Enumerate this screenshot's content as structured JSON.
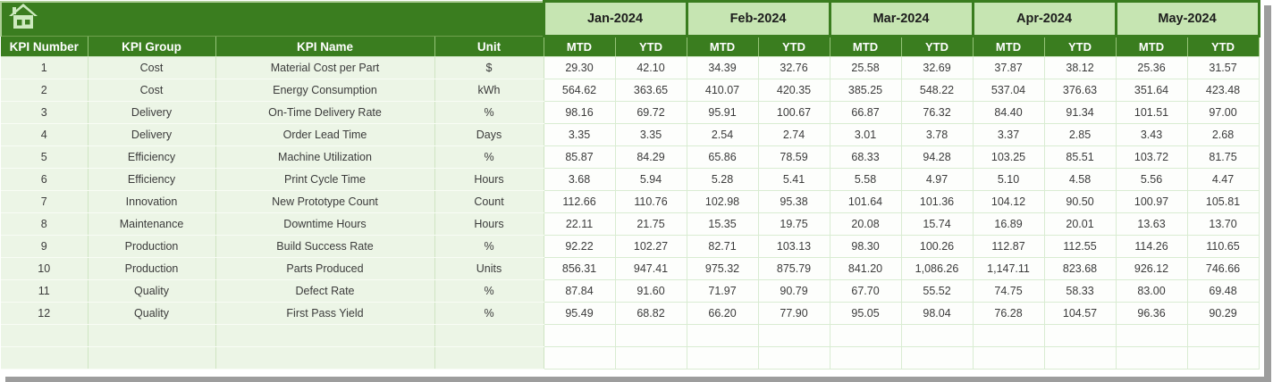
{
  "toolbar": {
    "home_icon": "home"
  },
  "table": {
    "corner_headers": [
      "KPI Number",
      "KPI Group",
      "KPI Name",
      "Unit"
    ],
    "months": [
      "Jan-2024",
      "Feb-2024",
      "Mar-2024",
      "Apr-2024",
      "May-2024"
    ],
    "period_headers": [
      "MTD",
      "YTD"
    ],
    "rows": [
      {
        "number": "1",
        "group": "Cost",
        "name": "Material Cost per Part",
        "unit": "$",
        "values": [
          "29.30",
          "42.10",
          "34.39",
          "32.76",
          "25.58",
          "32.69",
          "37.87",
          "38.12",
          "25.36",
          "31.57"
        ]
      },
      {
        "number": "2",
        "group": "Cost",
        "name": "Energy Consumption",
        "unit": "kWh",
        "values": [
          "564.62",
          "363.65",
          "410.07",
          "420.35",
          "385.25",
          "548.22",
          "537.04",
          "376.63",
          "351.64",
          "423.48"
        ]
      },
      {
        "number": "3",
        "group": "Delivery",
        "name": "On-Time Delivery Rate",
        "unit": "%",
        "values": [
          "98.16",
          "69.72",
          "95.91",
          "100.67",
          "66.87",
          "76.32",
          "84.40",
          "91.34",
          "101.51",
          "97.00"
        ]
      },
      {
        "number": "4",
        "group": "Delivery",
        "name": "Order Lead Time",
        "unit": "Days",
        "values": [
          "3.35",
          "3.35",
          "2.54",
          "2.74",
          "3.01",
          "3.78",
          "3.37",
          "2.85",
          "3.43",
          "2.68"
        ]
      },
      {
        "number": "5",
        "group": "Efficiency",
        "name": "Machine Utilization",
        "unit": "%",
        "values": [
          "85.87",
          "84.29",
          "65.86",
          "78.59",
          "68.33",
          "94.28",
          "103.25",
          "85.51",
          "103.72",
          "81.75"
        ]
      },
      {
        "number": "6",
        "group": "Efficiency",
        "name": "Print Cycle Time",
        "unit": "Hours",
        "values": [
          "3.68",
          "5.94",
          "5.28",
          "5.41",
          "5.58",
          "4.97",
          "5.10",
          "4.58",
          "5.56",
          "4.47"
        ]
      },
      {
        "number": "7",
        "group": "Innovation",
        "name": "New Prototype Count",
        "unit": "Count",
        "values": [
          "112.66",
          "110.76",
          "102.98",
          "95.38",
          "101.64",
          "101.36",
          "104.12",
          "90.50",
          "100.97",
          "105.81"
        ]
      },
      {
        "number": "8",
        "group": "Maintenance",
        "name": "Downtime Hours",
        "unit": "Hours",
        "values": [
          "22.11",
          "21.75",
          "15.35",
          "19.75",
          "20.08",
          "15.74",
          "16.89",
          "20.01",
          "13.63",
          "13.70"
        ]
      },
      {
        "number": "9",
        "group": "Production",
        "name": "Build Success Rate",
        "unit": "%",
        "values": [
          "92.22",
          "102.27",
          "82.71",
          "103.13",
          "98.30",
          "100.26",
          "112.87",
          "112.55",
          "114.26",
          "110.65"
        ]
      },
      {
        "number": "10",
        "group": "Production",
        "name": "Parts Produced",
        "unit": "Units",
        "values": [
          "856.31",
          "947.41",
          "975.32",
          "875.79",
          "841.20",
          "1,086.26",
          "1,147.11",
          "823.68",
          "926.12",
          "746.66"
        ]
      },
      {
        "number": "11",
        "group": "Quality",
        "name": "Defect Rate",
        "unit": "%",
        "values": [
          "87.84",
          "91.60",
          "71.97",
          "90.79",
          "67.70",
          "55.52",
          "74.75",
          "58.33",
          "83.00",
          "69.48"
        ]
      },
      {
        "number": "12",
        "group": "Quality",
        "name": "First Pass Yield",
        "unit": "%",
        "values": [
          "95.49",
          "68.82",
          "66.20",
          "77.90",
          "95.05",
          "98.04",
          "76.28",
          "104.57",
          "96.36",
          "90.29"
        ]
      }
    ],
    "empty_row_count": 2
  },
  "colors": {
    "dark_green": "#3a7d1f",
    "month_header_bg": "#c6e5b2",
    "left_cell_bg": "#ecf5e6",
    "value_cell_bg": "#fdfefc",
    "grid_green": "#d9ecd2",
    "header_text": "#ffffff",
    "body_text": "#3b3b3b",
    "icon_pale_green": "#cdeabf",
    "window_edge_gray": "#9d9d9d"
  }
}
